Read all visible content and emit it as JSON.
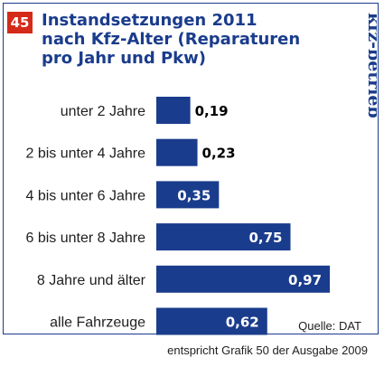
{
  "badge": "45",
  "title_lines": [
    "Instandsetzungen 2011",
    "nach Kfz-Alter (Reparaturen",
    "pro Jahr und Pkw)"
  ],
  "brand": "kfz-betrieb",
  "colors": {
    "bar": "#1a3c8c",
    "badge": "#d42a1a",
    "text": "#1e1e1e",
    "label_inside": "#ffffff",
    "label_outside": "#000000"
  },
  "source": "Quelle: DAT",
  "footnote": "entspricht Grafik 50 der Ausgabe 2009",
  "chart_data": {
    "type": "bar",
    "orientation": "horizontal",
    "title": "Instandsetzungen 2011 nach Kfz-Alter (Reparaturen pro Jahr und Pkw)",
    "categories": [
      "unter 2 Jahre",
      "2 bis unter 4 Jahre",
      "4 bis unter 6 Jahre",
      "6 bis unter 8 Jahre",
      "8 Jahre und älter",
      "alle Fahrzeuge"
    ],
    "values": [
      0.19,
      0.23,
      0.35,
      0.75,
      0.97,
      0.62
    ],
    "value_labels": [
      "0,19",
      "0,23",
      "0,35",
      "0,75",
      "0,97",
      "0,62"
    ],
    "xlim": [
      0,
      1.0
    ],
    "grid": false,
    "legend": "none"
  }
}
